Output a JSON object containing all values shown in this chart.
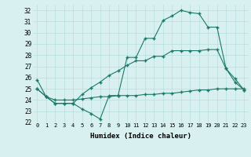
{
  "line1_x": [
    0,
    1,
    2,
    3,
    4,
    5,
    6,
    7,
    8,
    9,
    10,
    11,
    12,
    13,
    14,
    15,
    16,
    17,
    18,
    19,
    20,
    21,
    22,
    23
  ],
  "line1_y": [
    25.8,
    24.3,
    23.7,
    23.7,
    23.7,
    23.2,
    22.8,
    22.3,
    24.4,
    24.4,
    27.8,
    27.8,
    29.5,
    29.5,
    31.1,
    31.5,
    32.0,
    31.8,
    31.7,
    30.5,
    30.5,
    26.8,
    25.9,
    24.9
  ],
  "line2_x": [
    0,
    1,
    2,
    3,
    4,
    5,
    6,
    7,
    8,
    9,
    10,
    11,
    12,
    13,
    14,
    15,
    16,
    17,
    18,
    19,
    20,
    21,
    22,
    23
  ],
  "line2_y": [
    25.0,
    24.3,
    23.7,
    23.7,
    23.7,
    24.5,
    25.1,
    25.6,
    26.2,
    26.6,
    27.1,
    27.5,
    27.5,
    27.9,
    27.9,
    28.4,
    28.4,
    28.4,
    28.4,
    28.5,
    28.5,
    26.8,
    25.6,
    24.9
  ],
  "line3_x": [
    0,
    1,
    2,
    3,
    4,
    5,
    6,
    7,
    8,
    9,
    10,
    11,
    12,
    13,
    14,
    15,
    16,
    17,
    18,
    19,
    20,
    21,
    22,
    23
  ],
  "line3_y": [
    25.0,
    24.3,
    24.0,
    24.0,
    24.0,
    24.1,
    24.2,
    24.3,
    24.3,
    24.4,
    24.4,
    24.4,
    24.5,
    24.5,
    24.6,
    24.6,
    24.7,
    24.8,
    24.9,
    24.9,
    25.0,
    25.0,
    25.0,
    25.0
  ],
  "line_color": "#1a7a6a",
  "bg_color": "#d8f0f0",
  "grid_color": "#b8dede",
  "xlabel": "Humidex (Indice chaleur)",
  "xlim": [
    -0.5,
    23.5
  ],
  "ylim": [
    22,
    32.5
  ],
  "yticks": [
    22,
    23,
    24,
    25,
    26,
    27,
    28,
    29,
    30,
    31,
    32
  ],
  "xticks": [
    0,
    1,
    2,
    3,
    4,
    5,
    6,
    7,
    8,
    9,
    10,
    11,
    12,
    13,
    14,
    15,
    16,
    17,
    18,
    19,
    20,
    21,
    22,
    23
  ],
  "marker": "+"
}
